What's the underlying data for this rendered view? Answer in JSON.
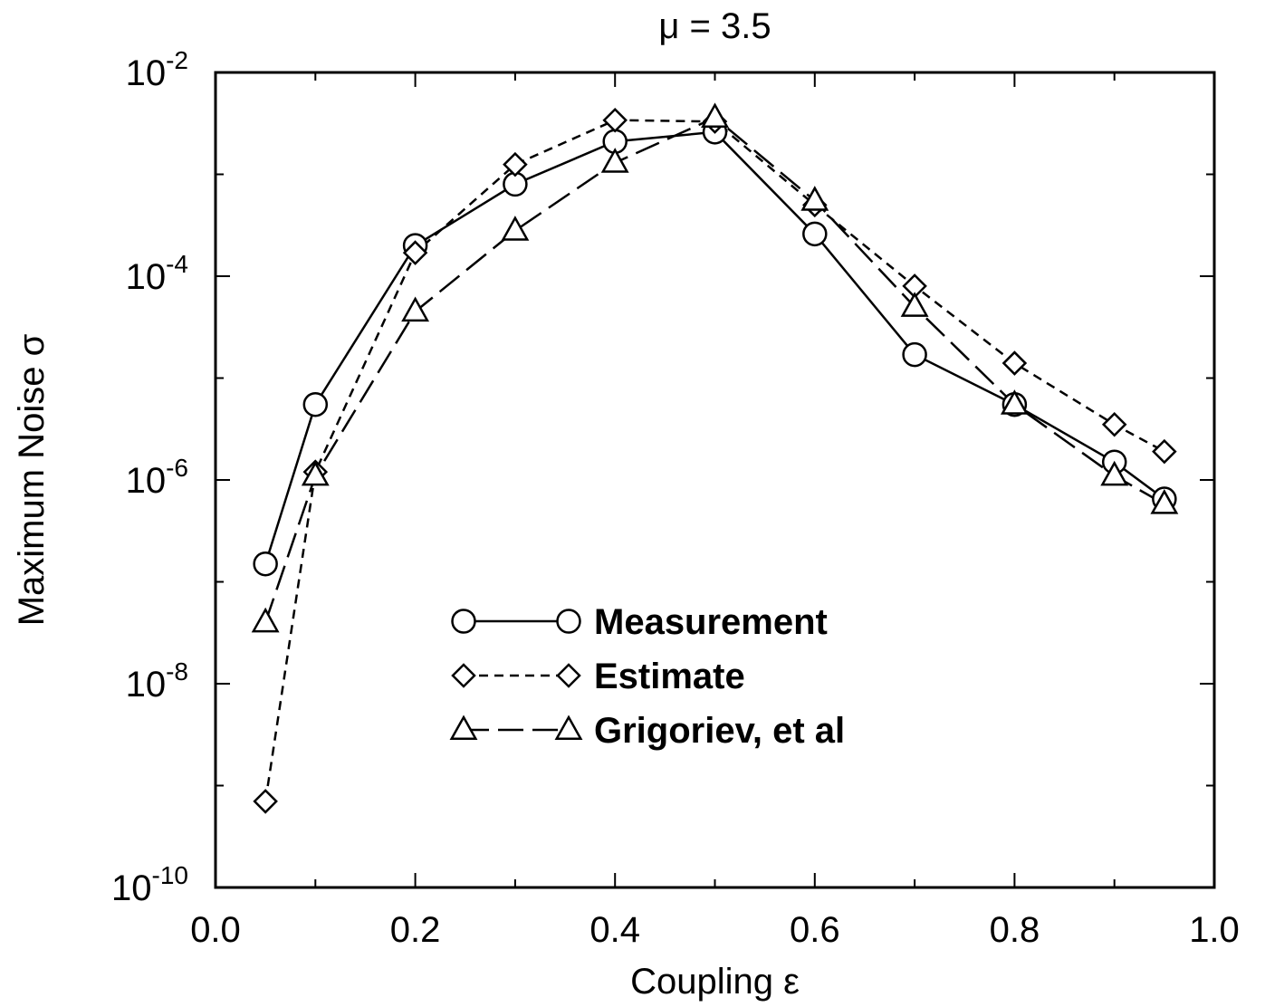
{
  "chart_data": {
    "type": "line",
    "title": "μ = 3.5",
    "xlabel": "Coupling ε",
    "ylabel": "Maximum Noise σ",
    "xlim": [
      0.0,
      1.0
    ],
    "ylim": [
      1e-10,
      0.01
    ],
    "y_scale": "log",
    "grid": false,
    "legend_position": "center-left inside plot",
    "x_ticks": [
      "0.0",
      "0.2",
      "0.4",
      "0.6",
      "0.8",
      "1.0"
    ],
    "y_ticks": [
      {
        "base": "10",
        "exp": "-10"
      },
      {
        "base": "10",
        "exp": "-8"
      },
      {
        "base": "10",
        "exp": "-6"
      },
      {
        "base": "10",
        "exp": "-4"
      },
      {
        "base": "10",
        "exp": "-2"
      }
    ],
    "series": [
      {
        "name": "Measurement",
        "marker": "circle",
        "line": "solid",
        "x": [
          0.05,
          0.1,
          0.2,
          0.3,
          0.4,
          0.5,
          0.6,
          0.7,
          0.8,
          0.9,
          0.95
        ],
        "y": [
          1.5e-07,
          5.5e-06,
          0.0002,
          0.0008,
          0.0021,
          0.0026,
          0.00026,
          1.7e-05,
          5.5e-06,
          1.5e-06,
          6.5e-07
        ]
      },
      {
        "name": "Estimate",
        "marker": "diamond",
        "line": "dashed",
        "x": [
          0.05,
          0.1,
          0.2,
          0.3,
          0.4,
          0.5,
          0.6,
          0.7,
          0.8,
          0.9,
          0.95
        ],
        "y": [
          7e-10,
          1.2e-06,
          0.00017,
          0.00125,
          0.0034,
          0.0033,
          0.0005,
          8e-05,
          1.4e-05,
          3.5e-06,
          1.9e-06
        ]
      },
      {
        "name": "Grigoriev, et al",
        "marker": "triangle",
        "line": "long-dashed",
        "x": [
          0.05,
          0.1,
          0.2,
          0.3,
          0.4,
          0.5,
          0.6,
          0.7,
          0.8,
          0.9,
          0.95
        ],
        "y": [
          4e-08,
          1.1e-06,
          4.5e-05,
          0.00028,
          0.0013,
          0.0036,
          0.00055,
          5e-05,
          5.5e-06,
          1.1e-06,
          5.8e-07
        ]
      }
    ]
  }
}
